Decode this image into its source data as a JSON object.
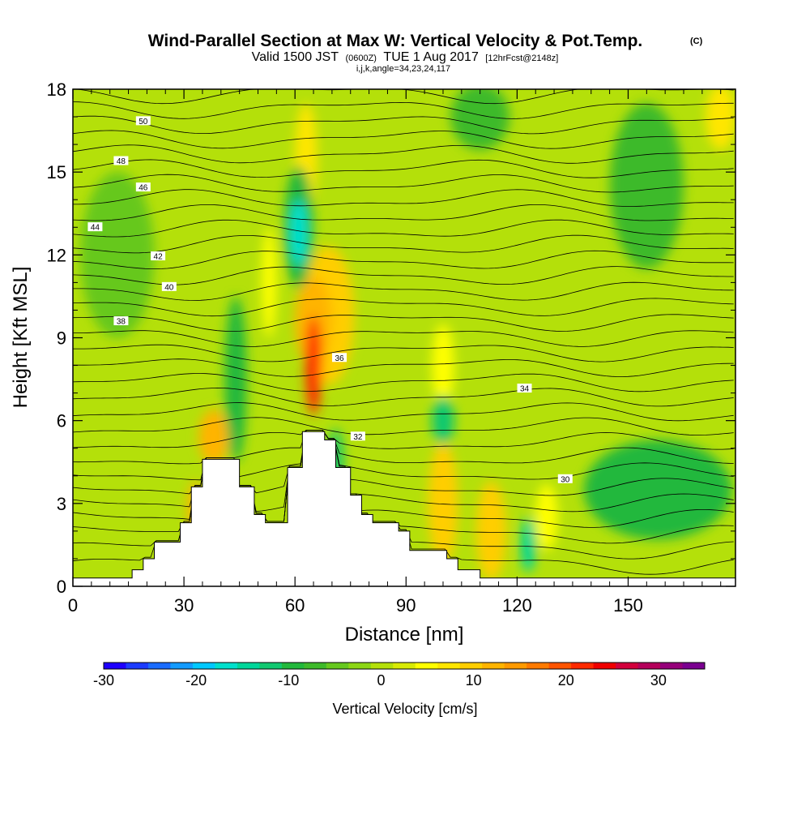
{
  "chart_data": {
    "type": "heatmap",
    "title": "Wind-Parallel Section at Max W: Vertical Velocity & Pot.Temp.",
    "title_tag": "(C)",
    "subtitle": {
      "valid_prefix": "Valid 1500 JST",
      "utc": "(0600Z)",
      "date": "TUE 1 Aug 2017",
      "forecast": "[12hrFcst@2148z]"
    },
    "info_line": "i,j,k,angle=34,23,24,117",
    "xlabel": "Distance [nm]",
    "ylabel": "Height [Kft MSL]",
    "xlim": [
      0,
      179
    ],
    "ylim": [
      0,
      18
    ],
    "x_ticks": [
      0,
      30,
      60,
      90,
      120,
      150
    ],
    "y_ticks": [
      0,
      3,
      6,
      9,
      12,
      15,
      18
    ],
    "colorbar": {
      "title": "Vertical Velocity [cm/s]",
      "range": [
        -30,
        35
      ],
      "step": 2.5,
      "tick_labels": [
        "-30",
        "-20",
        "-10",
        "0",
        "10",
        "20",
        "30"
      ],
      "colors": [
        "#1e00ff",
        "#1c3cff",
        "#1a6cff",
        "#139bff",
        "#00c8ff",
        "#00e0cc",
        "#00d69a",
        "#11c870",
        "#22b83c",
        "#3eba2a",
        "#66c81e",
        "#8cd614",
        "#b4e00a",
        "#d8ea04",
        "#ffff00",
        "#ffe600",
        "#ffce00",
        "#ffb400",
        "#ff9a00",
        "#ff7a00",
        "#ff5400",
        "#ff2a00",
        "#f00000",
        "#d2003c",
        "#b4005a",
        "#96007a",
        "#7a0090"
      ]
    },
    "velocity_features": [
      {
        "x": 65,
        "y": 8.0,
        "value": 24,
        "rx": 2.2,
        "ry": 1.8
      },
      {
        "x": 65,
        "y": 9.6,
        "value": 14,
        "rx": 5,
        "ry": 1.6
      },
      {
        "x": 69,
        "y": 9.8,
        "value": 10,
        "rx": 7,
        "ry": 2.5
      },
      {
        "x": 61,
        "y": 12.8,
        "value": -16,
        "rx": 2.5,
        "ry": 1.2
      },
      {
        "x": 61,
        "y": 13.0,
        "value": -9,
        "rx": 4,
        "ry": 2.2
      },
      {
        "x": 63,
        "y": 15.5,
        "value": 8,
        "rx": 3,
        "ry": 2
      },
      {
        "x": 38,
        "y": 5.4,
        "value": 13,
        "rx": 4,
        "ry": 1.0
      },
      {
        "x": 33,
        "y": 2.8,
        "value": 14,
        "rx": 2,
        "ry": 1.0
      },
      {
        "x": 44,
        "y": 7.5,
        "value": -8,
        "rx": 3,
        "ry": 3
      },
      {
        "x": 53,
        "y": 11.0,
        "value": 7,
        "rx": 2,
        "ry": 2
      },
      {
        "x": 71,
        "y": 4.5,
        "value": -12,
        "rx": 2,
        "ry": 1.2
      },
      {
        "x": 100,
        "y": 6.0,
        "value": -12,
        "rx": 3,
        "ry": 0.9
      },
      {
        "x": 100,
        "y": 8.0,
        "value": 6,
        "rx": 3,
        "ry": 1.5
      },
      {
        "x": 100,
        "y": 3.0,
        "value": 12,
        "rx": 4,
        "ry": 2.2
      },
      {
        "x": 113,
        "y": 2.0,
        "value": 12,
        "rx": 4,
        "ry": 1.8
      },
      {
        "x": 123,
        "y": 1.5,
        "value": -13,
        "rx": 2,
        "ry": 1.0
      },
      {
        "x": 128,
        "y": 2.5,
        "value": 7,
        "rx": 3,
        "ry": 1.2
      },
      {
        "x": 158,
        "y": 3.5,
        "value": -8,
        "rx": 20,
        "ry": 1.8
      },
      {
        "x": 155,
        "y": 14.5,
        "value": -7,
        "rx": 10,
        "ry": 3
      },
      {
        "x": 110,
        "y": 17.0,
        "value": -7,
        "rx": 8,
        "ry": 1.2
      },
      {
        "x": 175,
        "y": 17.0,
        "value": 8,
        "rx": 4,
        "ry": 1.2
      },
      {
        "x": 12,
        "y": 12.0,
        "value": -5,
        "rx": 10,
        "ry": 3
      }
    ],
    "terrain": [
      {
        "x": 0,
        "h": 0.3
      },
      {
        "x": 16,
        "h": 0.3
      },
      {
        "x": 16,
        "h": 0.6
      },
      {
        "x": 19,
        "h": 0.6
      },
      {
        "x": 19,
        "h": 1.0
      },
      {
        "x": 22,
        "h": 1.0
      },
      {
        "x": 22,
        "h": 1.6
      },
      {
        "x": 29,
        "h": 1.6
      },
      {
        "x": 29,
        "h": 2.3
      },
      {
        "x": 32,
        "h": 2.3
      },
      {
        "x": 32,
        "h": 3.6
      },
      {
        "x": 35,
        "h": 3.6
      },
      {
        "x": 35,
        "h": 4.6
      },
      {
        "x": 45,
        "h": 4.6
      },
      {
        "x": 45,
        "h": 3.6
      },
      {
        "x": 49,
        "h": 3.6
      },
      {
        "x": 49,
        "h": 2.6
      },
      {
        "x": 52,
        "h": 2.6
      },
      {
        "x": 52,
        "h": 2.3
      },
      {
        "x": 58,
        "h": 2.3
      },
      {
        "x": 58,
        "h": 4.3
      },
      {
        "x": 62,
        "h": 4.3
      },
      {
        "x": 62,
        "h": 5.6
      },
      {
        "x": 68,
        "h": 5.6
      },
      {
        "x": 68,
        "h": 5.3
      },
      {
        "x": 71,
        "h": 5.3
      },
      {
        "x": 71,
        "h": 4.3
      },
      {
        "x": 75,
        "h": 4.3
      },
      {
        "x": 75,
        "h": 3.3
      },
      {
        "x": 78,
        "h": 3.3
      },
      {
        "x": 78,
        "h": 2.6
      },
      {
        "x": 81,
        "h": 2.6
      },
      {
        "x": 81,
        "h": 2.3
      },
      {
        "x": 88,
        "h": 2.3
      },
      {
        "x": 88,
        "h": 2.0
      },
      {
        "x": 91,
        "h": 2.0
      },
      {
        "x": 91,
        "h": 1.3
      },
      {
        "x": 101,
        "h": 1.3
      },
      {
        "x": 101,
        "h": 1.0
      },
      {
        "x": 104,
        "h": 1.0
      },
      {
        "x": 104,
        "h": 0.6
      },
      {
        "x": 110,
        "h": 0.6
      },
      {
        "x": 110,
        "h": 0.3
      },
      {
        "x": 179,
        "h": 0.3
      }
    ],
    "isentropes": [
      {
        "label": "30",
        "base": 3.9,
        "label_x": 133
      },
      {
        "label": "32",
        "base": 5.6,
        "label_x": 77
      },
      {
        "label": "34",
        "base": 7.0,
        "label_x": 122
      },
      {
        "label": "36",
        "base": 8.5,
        "label_x": 72
      },
      {
        "label": "38",
        "base": 9.4,
        "label_x": 13
      },
      {
        "label": "40",
        "base": 10.6,
        "label_x": 26
      },
      {
        "label": "42",
        "base": 11.7,
        "label_x": 23
      },
      {
        "label": "44",
        "base": 12.9,
        "label_x": 6
      },
      {
        "label": "46",
        "base": 14.2,
        "label_x": 19
      },
      {
        "label": "48",
        "base": 15.2,
        "label_x": 13
      },
      {
        "label": "50",
        "base": 16.6,
        "label_x": 19
      }
    ]
  }
}
